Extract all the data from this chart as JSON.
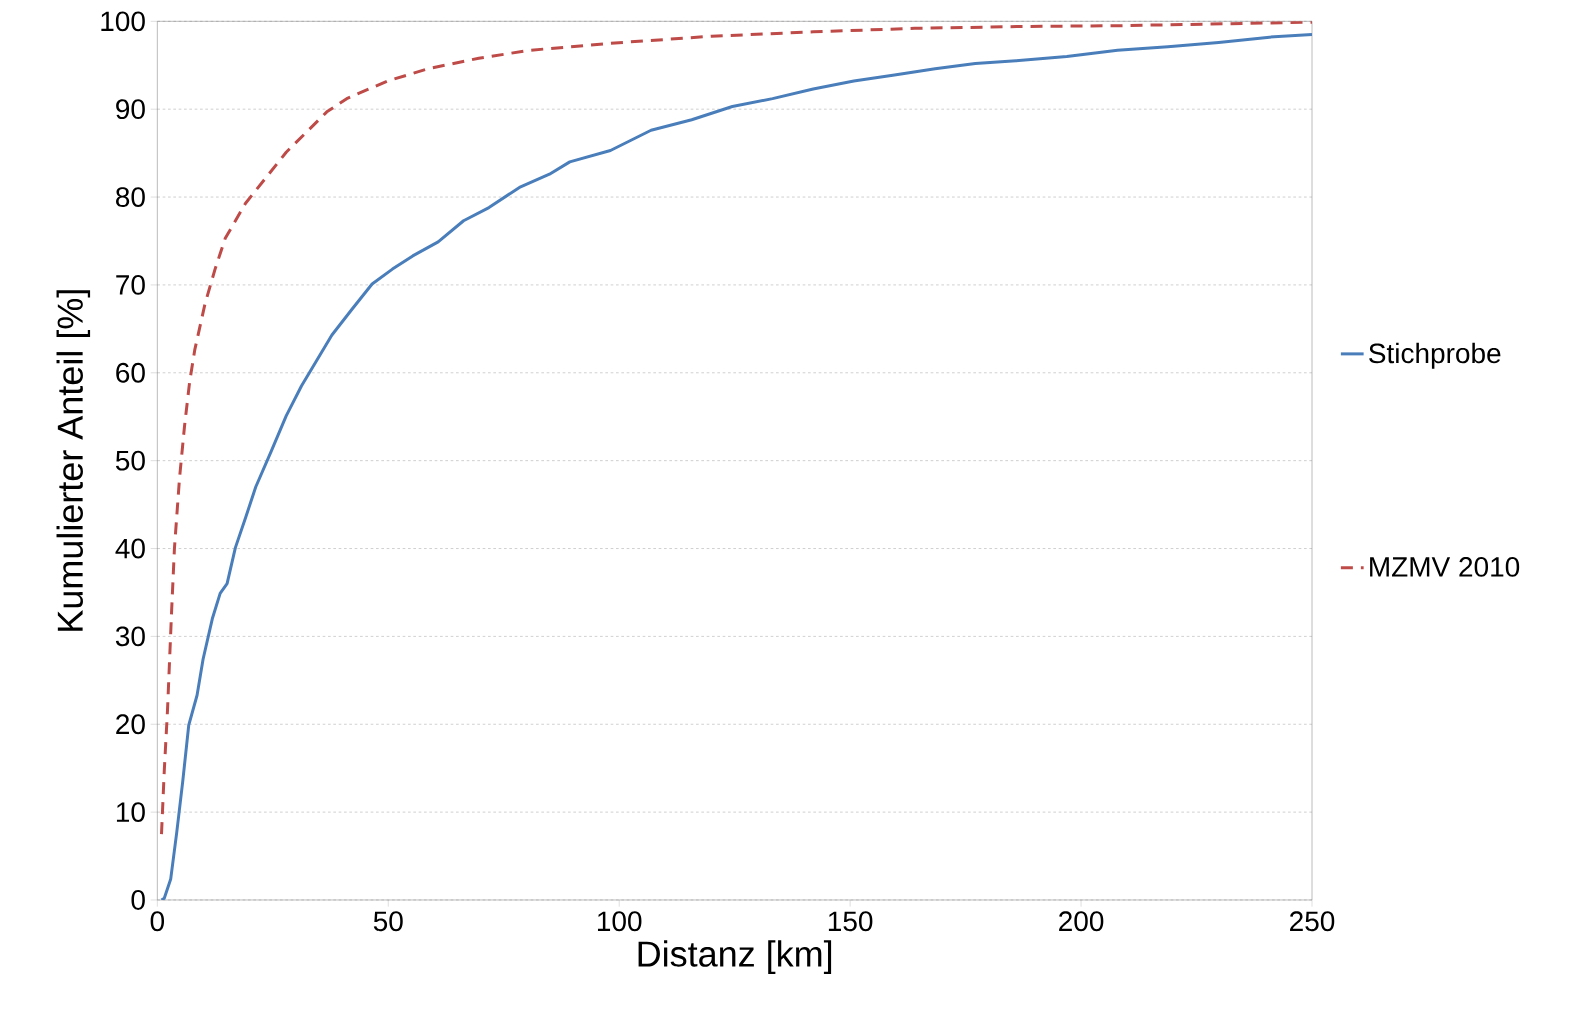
{
  "chart_data": {
    "type": "line",
    "xlabel": "Distanz [km]",
    "ylabel": "Kumulierter Anteil [%]",
    "xlim": [
      0,
      250
    ],
    "ylim": [
      0,
      100
    ],
    "xticks": [
      0,
      50,
      100,
      150,
      200,
      250
    ],
    "yticks": [
      0,
      10,
      20,
      30,
      40,
      50,
      60,
      70,
      80,
      90,
      100
    ],
    "grid": "y",
    "legend": "right",
    "marker": "none",
    "series": [
      {
        "name": "Stichprobe",
        "color": "#4a7ebb",
        "line_style": "solid",
        "x": [
          0.9,
          1.5,
          2.9,
          4.2,
          5.5,
          6.8,
          8.6,
          9.9,
          11.9,
          13.6,
          15.1,
          16.9,
          19.1,
          21.3,
          24.6,
          27.9,
          31.2,
          34.5,
          37.8,
          42.1,
          46.5,
          50.9,
          55.3,
          60.8,
          66.3,
          71.8,
          78.4,
          84.9,
          89.3,
          98.1,
          106.9,
          115.7,
          124.5,
          133.2,
          142,
          150.8,
          159.6,
          168.4,
          177.1,
          185.9,
          196.9,
          207.9,
          218.8,
          229.8,
          240.8,
          250
        ],
        "values": [
          0,
          0.2,
          2.4,
          7.7,
          13.5,
          19.9,
          23.3,
          27.4,
          32,
          34.9,
          36,
          40.1,
          43.5,
          47,
          51,
          55.1,
          58.5,
          61.4,
          64.3,
          67.2,
          70.1,
          71.8,
          73.3,
          74.9,
          77.3,
          78.8,
          81.1,
          82.6,
          84,
          85.3,
          87.6,
          88.8,
          90.3,
          91.2,
          92.3,
          93.2,
          93.9,
          94.6,
          95.2,
          95.5,
          96,
          96.7,
          97.1,
          97.6,
          98.2,
          98.5
        ]
      },
      {
        "name": "MZMV 2010",
        "color": "#be4b48",
        "line_style": "dashed",
        "x": [
          0.9,
          1.5,
          2.2,
          3.1,
          3.7,
          4.8,
          5.9,
          7,
          8.1,
          10.3,
          12.5,
          14.7,
          19.1,
          23.5,
          27.9,
          32.3,
          36.7,
          41,
          49.8,
          58.6,
          69.6,
          80.6,
          98.1,
          120,
          142,
          164,
          186,
          208,
          250
        ],
        "values": [
          7.5,
          14.7,
          21.6,
          33,
          40,
          48,
          54,
          59,
          62.6,
          67.8,
          71.8,
          75.3,
          79.3,
          82.2,
          85.1,
          87.4,
          89.7,
          91.2,
          93.2,
          94.6,
          95.8,
          96.7,
          97.5,
          98.3,
          98.8,
          99.2,
          99.4,
          99.5,
          99.9
        ]
      }
    ]
  }
}
